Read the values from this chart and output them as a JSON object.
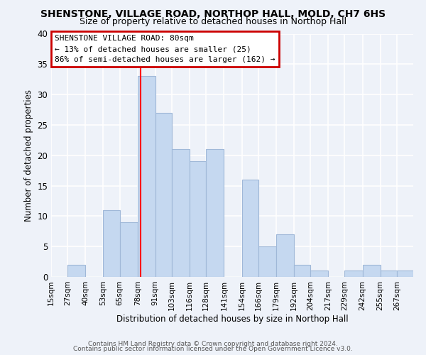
{
  "title": "SHENSTONE, VILLAGE ROAD, NORTHOP HALL, MOLD, CH7 6HS",
  "subtitle": "Size of property relative to detached houses in Northop Hall",
  "xlabel": "Distribution of detached houses by size in Northop Hall",
  "ylabel": "Number of detached properties",
  "footer_line1": "Contains HM Land Registry data © Crown copyright and database right 2024.",
  "footer_line2": "Contains public sector information licensed under the Open Government Licence v3.0.",
  "bin_labels": [
    "15sqm",
    "27sqm",
    "40sqm",
    "53sqm",
    "65sqm",
    "78sqm",
    "91sqm",
    "103sqm",
    "116sqm",
    "128sqm",
    "141sqm",
    "154sqm",
    "166sqm",
    "179sqm",
    "192sqm",
    "204sqm",
    "217sqm",
    "229sqm",
    "242sqm",
    "255sqm",
    "267sqm"
  ],
  "bin_edges": [
    15,
    27,
    40,
    53,
    65,
    78,
    91,
    103,
    116,
    128,
    141,
    154,
    166,
    179,
    192,
    204,
    217,
    229,
    242,
    255,
    267
  ],
  "bar_values": [
    0,
    2,
    0,
    11,
    9,
    33,
    27,
    21,
    19,
    21,
    0,
    16,
    5,
    7,
    2,
    1,
    0,
    1,
    2,
    1,
    1
  ],
  "bar_color": "#c5d8f0",
  "bar_edge_color": "#a0b8d8",
  "vline_x": 80,
  "vline_color": "red",
  "ylim": [
    0,
    40
  ],
  "yticks": [
    0,
    5,
    10,
    15,
    20,
    25,
    30,
    35,
    40
  ],
  "annotation_title": "SHENSTONE VILLAGE ROAD: 80sqm",
  "annotation_line1": "← 13% of detached houses are smaller (25)",
  "annotation_line2": "86% of semi-detached houses are larger (162) →",
  "annotation_box_color": "white",
  "annotation_box_edge": "#cc0000",
  "background_color": "#eef2f9"
}
